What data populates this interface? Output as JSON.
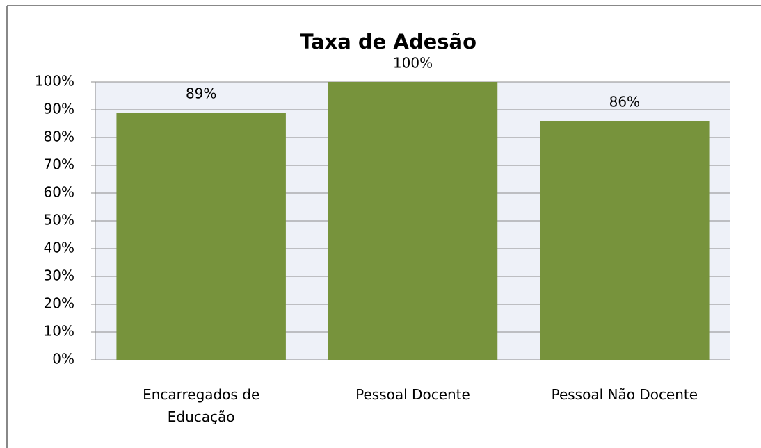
{
  "chart_data": {
    "type": "bar",
    "title": "Taxa de Adesão",
    "categories": [
      "Encarregados de Educação",
      "Pessoal Docente",
      "Pessoal Não Docente"
    ],
    "values": [
      89,
      100,
      86
    ],
    "value_labels": [
      "89%",
      "100%",
      "86%"
    ],
    "color": "#77933c",
    "ylim": [
      0,
      100
    ],
    "yticks": [
      {
        "value": 0,
        "label": "0%"
      },
      {
        "value": 10,
        "label": "10%"
      },
      {
        "value": 20,
        "label": "20%"
      },
      {
        "value": 30,
        "label": "30%"
      },
      {
        "value": 40,
        "label": "40%"
      },
      {
        "value": 50,
        "label": "50%"
      },
      {
        "value": 60,
        "label": "60%"
      },
      {
        "value": 70,
        "label": "70%"
      },
      {
        "value": 80,
        "label": "80%"
      },
      {
        "value": 90,
        "label": "90%"
      },
      {
        "value": 100,
        "label": "100%"
      }
    ],
    "grid": true
  }
}
